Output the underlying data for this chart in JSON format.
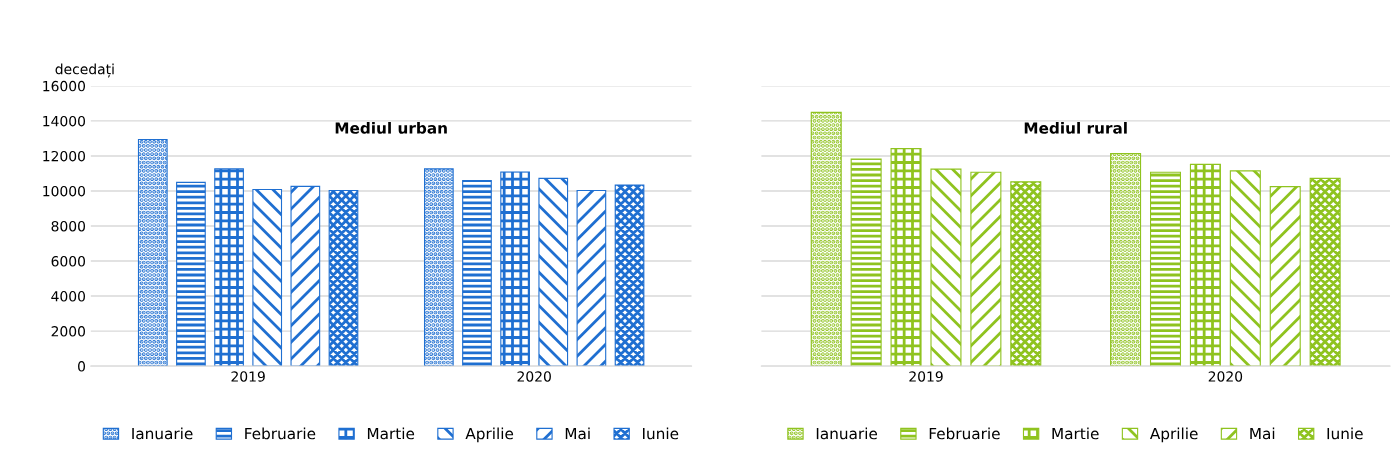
{
  "chart_data": [
    {
      "type": "bar",
      "title": "Mediul urban",
      "ylabel": "decedați",
      "categories": [
        "2019",
        "2020"
      ],
      "ylim": [
        0,
        16000
      ],
      "yticks": [
        0,
        2000,
        4000,
        6000,
        8000,
        10000,
        12000,
        14000,
        16000
      ],
      "grid": "y",
      "legend": "bottom",
      "series": [
        {
          "name": "Ianuarie",
          "color": "#1f6fd1",
          "values": [
            12940,
            11260
          ]
        },
        {
          "name": "Februarie",
          "color": "#1f6fd1",
          "values": [
            10490,
            10590
          ]
        },
        {
          "name": "Martie",
          "color": "#1f6fd1",
          "values": [
            11260,
            11080
          ]
        },
        {
          "name": "Aprilie",
          "color": "#1f6fd1",
          "values": [
            10080,
            10720
          ]
        },
        {
          "name": "Mai",
          "color": "#1f6fd1",
          "values": [
            10260,
            10030
          ]
        },
        {
          "name": "Iunie",
          "color": "#1f6fd1",
          "values": [
            10030,
            10340
          ]
        }
      ]
    },
    {
      "type": "bar",
      "title": "Mediul rural",
      "categories": [
        "2019",
        "2020"
      ],
      "ylim": [
        0,
        16000
      ],
      "yticks": [
        0,
        2000,
        4000,
        6000,
        8000,
        10000,
        12000,
        14000,
        16000
      ],
      "grid": "y",
      "legend": "bottom",
      "tick_labels": "x",
      "series": [
        {
          "name": "Ianuarie",
          "color": "#8fc31f",
          "values": [
            14490,
            12140
          ]
        },
        {
          "name": "Februarie",
          "color": "#8fc31f",
          "values": [
            11820,
            11070
          ]
        },
        {
          "name": "Martie",
          "color": "#8fc31f",
          "values": [
            12420,
            11520
          ]
        },
        {
          "name": "Aprilie",
          "color": "#8fc31f",
          "values": [
            11250,
            11150
          ]
        },
        {
          "name": "Mai",
          "color": "#8fc31f",
          "values": [
            11070,
            10250
          ]
        },
        {
          "name": "Iunie",
          "color": "#8fc31f",
          "values": [
            10520,
            10720
          ]
        }
      ]
    }
  ]
}
